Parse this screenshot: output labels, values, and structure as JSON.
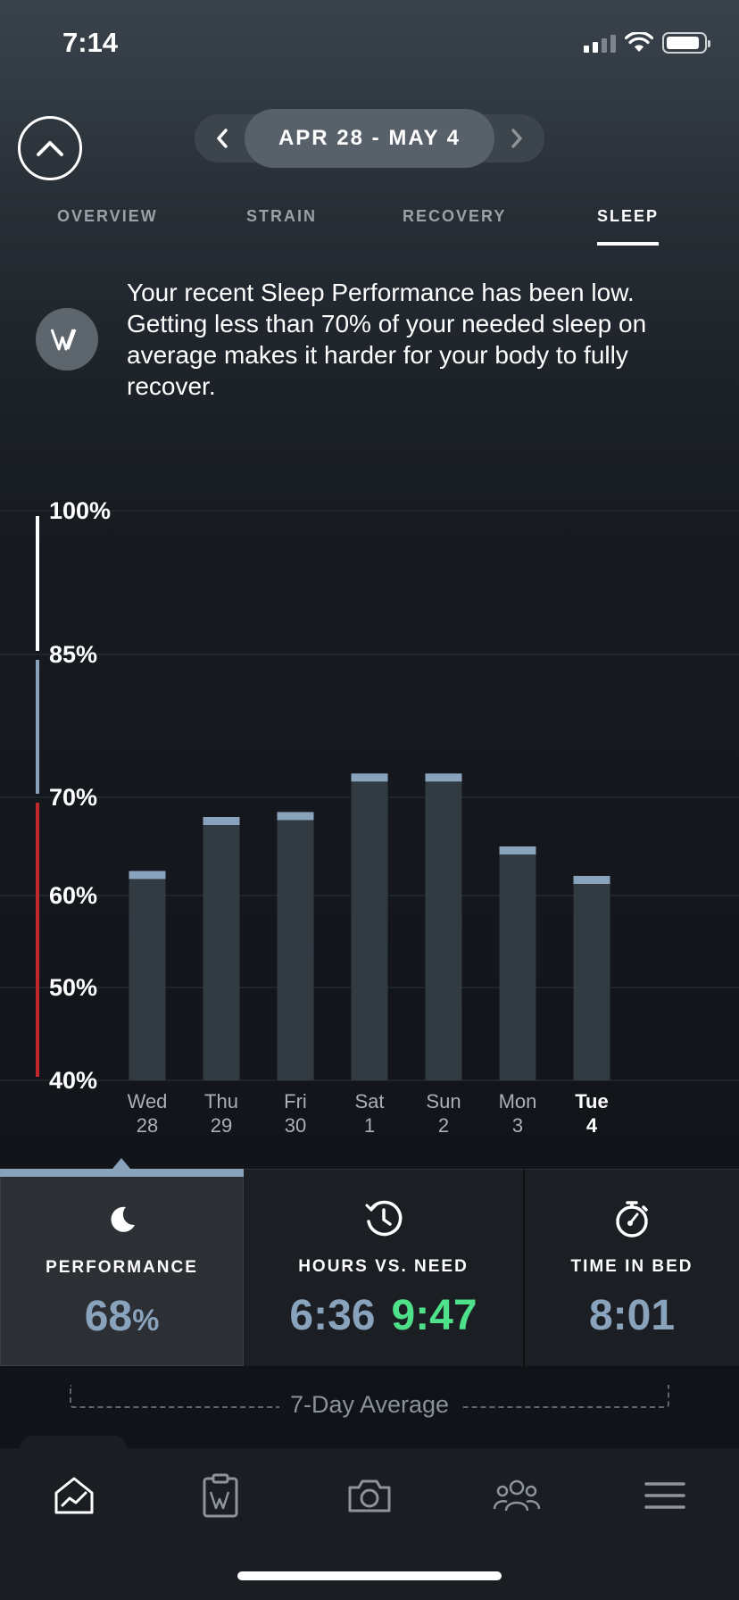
{
  "status_bar": {
    "time": "7:14"
  },
  "header": {
    "date_range": "APR 28 - MAY 4",
    "prev_icon": "chevron-left-icon",
    "next_icon": "chevron-right-icon",
    "collapse_icon": "chevron-up-icon"
  },
  "tabs": [
    {
      "label": "OVERVIEW",
      "active": false
    },
    {
      "label": "STRAIN",
      "active": false
    },
    {
      "label": "RECOVERY",
      "active": false
    },
    {
      "label": "SLEEP",
      "active": true
    }
  ],
  "insight": {
    "icon": "whoop-logo-icon",
    "text": "Your recent Sleep Performance has been low. Getting less than 70% of your needed sleep on average makes it harder for your body to fully recover."
  },
  "chart_data": {
    "type": "bar",
    "categories": [
      "Wed 28",
      "Thu 29",
      "Fri 30",
      "Sat 1",
      "Sun 2",
      "Mon 3",
      "Tue 4"
    ],
    "values": [
      62.5,
      68,
      68.5,
      72.5,
      72.5,
      65,
      62
    ],
    "y_ticks": [
      "100%",
      "85%",
      "70%",
      "60%",
      "50%",
      "40%"
    ],
    "y_tick_values": [
      100,
      85,
      70,
      60,
      50,
      40
    ],
    "ylim": [
      40,
      100
    ],
    "zones": [
      {
        "from": 85,
        "to": 100,
        "color": "#ffffff"
      },
      {
        "from": 70,
        "to": 85,
        "color": "#8aa3bc"
      },
      {
        "from": 40,
        "to": 70,
        "color": "#c0282d"
      }
    ],
    "grid": true,
    "bar_color": "#323a42",
    "cap_color": "#8aa3bc"
  },
  "x_labels": [
    {
      "day": "Wed",
      "date": "28"
    },
    {
      "day": "Thu",
      "date": "29"
    },
    {
      "day": "Fri",
      "date": "30"
    },
    {
      "day": "Sat",
      "date": "1"
    },
    {
      "day": "Sun",
      "date": "2"
    },
    {
      "day": "Mon",
      "date": "3"
    },
    {
      "day": "Tue",
      "date": "4"
    }
  ],
  "stats": {
    "performance": {
      "icon": "moon-icon",
      "label": "PERFORMANCE",
      "value": "68",
      "unit": "%"
    },
    "hours_vs_need": {
      "icon": "clock-history-icon",
      "label": "HOURS VS. NEED",
      "hours": "6:36",
      "need": "9:47"
    },
    "time_in_bed": {
      "icon": "stopwatch-icon",
      "label": "TIME IN BED",
      "value": "8:01"
    }
  },
  "average_label": "7-Day Average",
  "bottom_nav": [
    {
      "icon": "home-icon",
      "active": true
    },
    {
      "icon": "clipboard-icon",
      "active": false
    },
    {
      "icon": "camera-icon",
      "active": false
    },
    {
      "icon": "team-icon",
      "active": false
    },
    {
      "icon": "menu-icon",
      "active": false
    }
  ],
  "colors": {
    "accent_blue": "#8aa3bc",
    "need_green": "#4fe08a",
    "zone_red": "#c0282d"
  }
}
